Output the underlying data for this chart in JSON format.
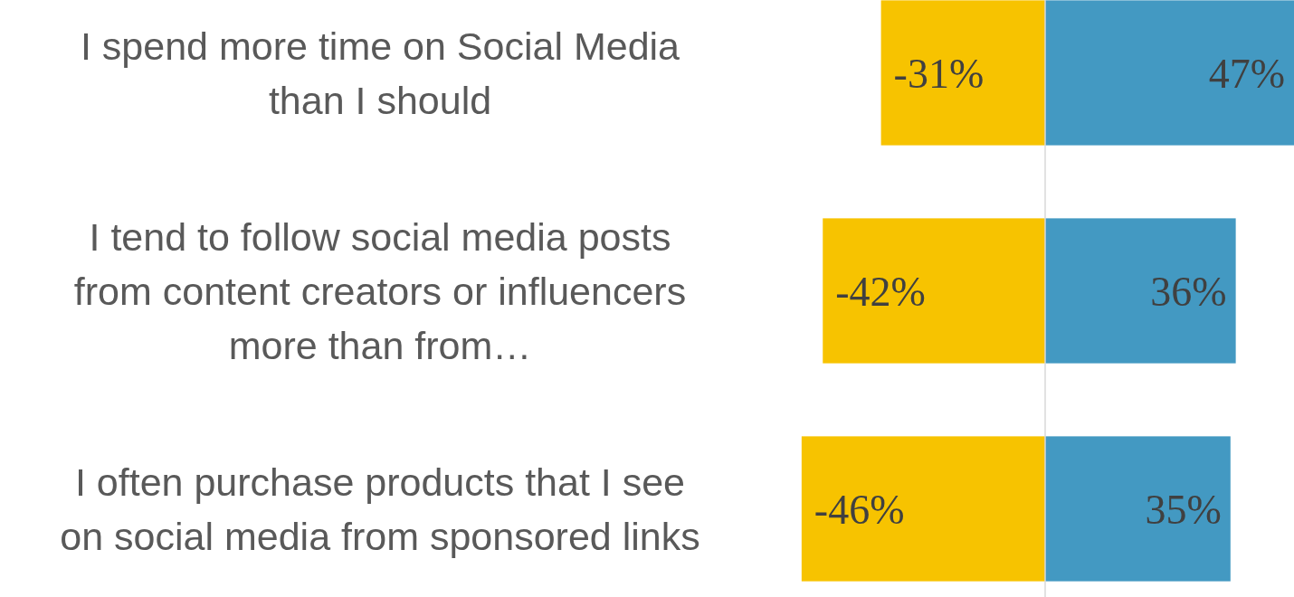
{
  "chart_data": {
    "type": "bar",
    "orientation": "horizontal",
    "categories": [
      "I spend more time on Social Media than I should",
      "I tend to follow social media posts from content creators or influencers more than  from…",
      "I often purchase products that I see on social media from sponsored links"
    ],
    "tick_labels": "y",
    "stacked": true,
    "series": [
      {
        "color": "#f7c300",
        "values": [
          -31,
          -42,
          -46
        ],
        "value_labels": [
          "-31%",
          "-42%",
          "-46%"
        ]
      },
      {
        "color": "#4399c2",
        "values": [
          47,
          36,
          35
        ],
        "value_labels": [
          "47%",
          "36%",
          "35%"
        ]
      }
    ]
  }
}
